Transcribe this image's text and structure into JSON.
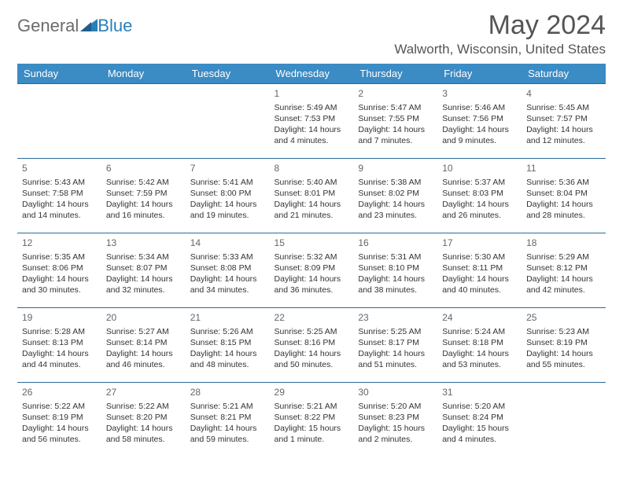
{
  "logo": {
    "part1": "General",
    "part2": "Blue"
  },
  "title": "May 2024",
  "location": "Walworth, Wisconsin, United States",
  "header_bg": "#3b8bc4",
  "header_text": "#ffffff",
  "rule_color": "#2a6a9c",
  "day_names": [
    "Sunday",
    "Monday",
    "Tuesday",
    "Wednesday",
    "Thursday",
    "Friday",
    "Saturday"
  ],
  "weeks": [
    [
      null,
      null,
      null,
      {
        "n": "1",
        "sr": "5:49 AM",
        "ss": "7:53 PM",
        "dl": "14 hours and 4 minutes."
      },
      {
        "n": "2",
        "sr": "5:47 AM",
        "ss": "7:55 PM",
        "dl": "14 hours and 7 minutes."
      },
      {
        "n": "3",
        "sr": "5:46 AM",
        "ss": "7:56 PM",
        "dl": "14 hours and 9 minutes."
      },
      {
        "n": "4",
        "sr": "5:45 AM",
        "ss": "7:57 PM",
        "dl": "14 hours and 12 minutes."
      }
    ],
    [
      {
        "n": "5",
        "sr": "5:43 AM",
        "ss": "7:58 PM",
        "dl": "14 hours and 14 minutes."
      },
      {
        "n": "6",
        "sr": "5:42 AM",
        "ss": "7:59 PM",
        "dl": "14 hours and 16 minutes."
      },
      {
        "n": "7",
        "sr": "5:41 AM",
        "ss": "8:00 PM",
        "dl": "14 hours and 19 minutes."
      },
      {
        "n": "8",
        "sr": "5:40 AM",
        "ss": "8:01 PM",
        "dl": "14 hours and 21 minutes."
      },
      {
        "n": "9",
        "sr": "5:38 AM",
        "ss": "8:02 PM",
        "dl": "14 hours and 23 minutes."
      },
      {
        "n": "10",
        "sr": "5:37 AM",
        "ss": "8:03 PM",
        "dl": "14 hours and 26 minutes."
      },
      {
        "n": "11",
        "sr": "5:36 AM",
        "ss": "8:04 PM",
        "dl": "14 hours and 28 minutes."
      }
    ],
    [
      {
        "n": "12",
        "sr": "5:35 AM",
        "ss": "8:06 PM",
        "dl": "14 hours and 30 minutes."
      },
      {
        "n": "13",
        "sr": "5:34 AM",
        "ss": "8:07 PM",
        "dl": "14 hours and 32 minutes."
      },
      {
        "n": "14",
        "sr": "5:33 AM",
        "ss": "8:08 PM",
        "dl": "14 hours and 34 minutes."
      },
      {
        "n": "15",
        "sr": "5:32 AM",
        "ss": "8:09 PM",
        "dl": "14 hours and 36 minutes."
      },
      {
        "n": "16",
        "sr": "5:31 AM",
        "ss": "8:10 PM",
        "dl": "14 hours and 38 minutes."
      },
      {
        "n": "17",
        "sr": "5:30 AM",
        "ss": "8:11 PM",
        "dl": "14 hours and 40 minutes."
      },
      {
        "n": "18",
        "sr": "5:29 AM",
        "ss": "8:12 PM",
        "dl": "14 hours and 42 minutes."
      }
    ],
    [
      {
        "n": "19",
        "sr": "5:28 AM",
        "ss": "8:13 PM",
        "dl": "14 hours and 44 minutes."
      },
      {
        "n": "20",
        "sr": "5:27 AM",
        "ss": "8:14 PM",
        "dl": "14 hours and 46 minutes."
      },
      {
        "n": "21",
        "sr": "5:26 AM",
        "ss": "8:15 PM",
        "dl": "14 hours and 48 minutes."
      },
      {
        "n": "22",
        "sr": "5:25 AM",
        "ss": "8:16 PM",
        "dl": "14 hours and 50 minutes."
      },
      {
        "n": "23",
        "sr": "5:25 AM",
        "ss": "8:17 PM",
        "dl": "14 hours and 51 minutes."
      },
      {
        "n": "24",
        "sr": "5:24 AM",
        "ss": "8:18 PM",
        "dl": "14 hours and 53 minutes."
      },
      {
        "n": "25",
        "sr": "5:23 AM",
        "ss": "8:19 PM",
        "dl": "14 hours and 55 minutes."
      }
    ],
    [
      {
        "n": "26",
        "sr": "5:22 AM",
        "ss": "8:19 PM",
        "dl": "14 hours and 56 minutes."
      },
      {
        "n": "27",
        "sr": "5:22 AM",
        "ss": "8:20 PM",
        "dl": "14 hours and 58 minutes."
      },
      {
        "n": "28",
        "sr": "5:21 AM",
        "ss": "8:21 PM",
        "dl": "14 hours and 59 minutes."
      },
      {
        "n": "29",
        "sr": "5:21 AM",
        "ss": "8:22 PM",
        "dl": "15 hours and 1 minute."
      },
      {
        "n": "30",
        "sr": "5:20 AM",
        "ss": "8:23 PM",
        "dl": "15 hours and 2 minutes."
      },
      {
        "n": "31",
        "sr": "5:20 AM",
        "ss": "8:24 PM",
        "dl": "15 hours and 4 minutes."
      },
      null
    ]
  ],
  "labels": {
    "sunrise": "Sunrise:",
    "sunset": "Sunset:",
    "daylight": "Daylight:"
  }
}
